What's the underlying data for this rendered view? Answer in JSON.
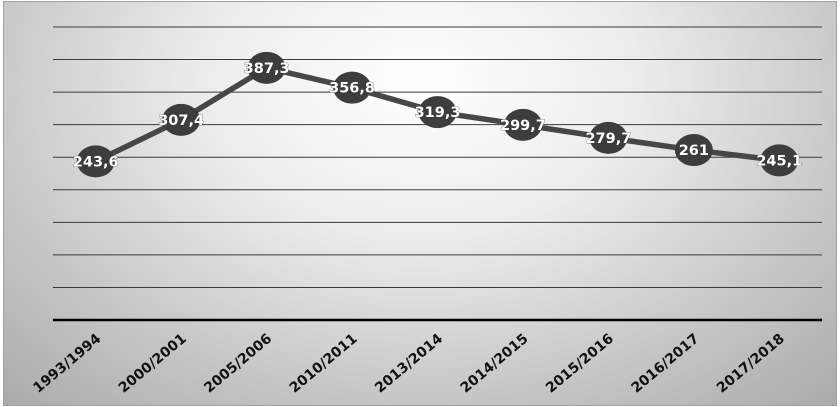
{
  "chart_data": {
    "type": "line",
    "categories": [
      "1993/1994",
      "2000/2001",
      "2005/2006",
      "2010/2011",
      "2013/2014",
      "2014/2015",
      "2015/2016",
      "2016/2017",
      "2017/2018"
    ],
    "series": [
      {
        "values": [
          243.6,
          307.4,
          387.3,
          356.8,
          319.3,
          299.7,
          279.7,
          261,
          245.1
        ],
        "labels": [
          "243,6",
          "307,4",
          "387,3",
          "356,8",
          "319,3",
          "299,7",
          "279,7",
          "261",
          "245,1"
        ]
      }
    ],
    "title": "",
    "xlabel": "",
    "ylabel": "",
    "ylim": [
      0,
      450
    ],
    "grid": true,
    "legend": "none",
    "colors": {
      "line": "#474747",
      "marker": "#3d3d3d",
      "gridline": "#3a3a3a",
      "axis": "#000000"
    }
  }
}
